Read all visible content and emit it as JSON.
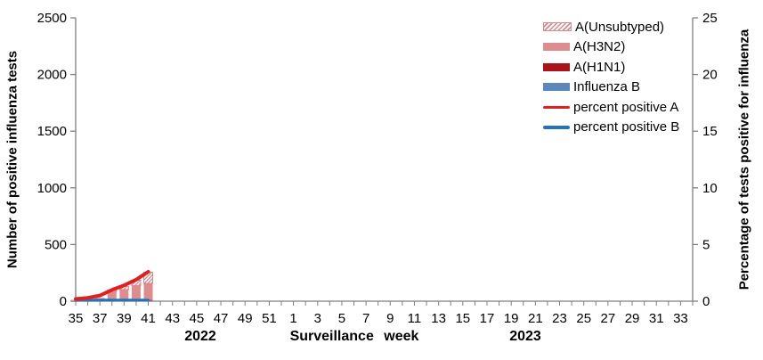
{
  "colors": {
    "a_unsubtyped_stripe": "#d8898b",
    "a_h3n2": "#de8d8f",
    "a_h1n1": "#a81418",
    "influenza_b": "#5b87bd",
    "percent_positive_a": "#e02020",
    "percent_positive_b": "#2274b8",
    "axis_line": "#7f7f7f",
    "text": "#000000"
  },
  "legend": {
    "items": [
      {
        "label": "A(Unsubtyped)",
        "swatch": "hatch"
      },
      {
        "label": "A(H3N2)",
        "swatch": "#de8d8f"
      },
      {
        "label": "A(H1N1)",
        "swatch": "#a81418"
      },
      {
        "label": "Influenza B",
        "swatch": "#5b87bd"
      },
      {
        "label": "percent positive A",
        "swatch": "line:#e02020"
      },
      {
        "label": "percent positive B",
        "swatch": "line:#2274b8"
      }
    ]
  },
  "x_axis": {
    "title": "Surveillance week",
    "year_left": "2022",
    "year_right": "2023"
  },
  "chart_data": {
    "type": "combo_stacked_bar_line",
    "title": "",
    "xlabel": "Surveillance week",
    "y_left": {
      "label": "Number of positive influenza tests",
      "ticks": [
        0,
        500,
        1000,
        1500,
        2000,
        2500
      ],
      "max": 2500
    },
    "y_right": {
      "label": "Percentage of tests positive for influenza",
      "ticks": [
        0,
        5,
        10,
        15,
        20,
        25
      ],
      "max": 25
    },
    "axis_weeks": [
      35,
      36,
      37,
      38,
      39,
      40,
      41,
      42,
      43,
      44,
      45,
      46,
      47,
      48,
      49,
      50,
      51,
      52,
      1,
      2,
      3,
      4,
      5,
      6,
      7,
      8,
      9,
      10,
      11,
      12,
      13,
      14,
      15,
      16,
      17,
      18,
      19,
      20,
      21,
      22,
      23,
      24,
      25,
      26,
      27,
      28,
      29,
      30,
      31,
      32,
      33,
      34
    ],
    "x_tick_labels": [
      35,
      37,
      39,
      41,
      43,
      45,
      47,
      49,
      51,
      1,
      3,
      5,
      7,
      9,
      11,
      13,
      15,
      17,
      19,
      21,
      23,
      25,
      27,
      29,
      31,
      33
    ],
    "data_weeks": [
      35,
      36,
      37,
      38,
      39,
      40,
      41
    ],
    "bar_series": [
      {
        "name": "Influenza B",
        "color": "#5b87bd",
        "pattern": "solid",
        "values": [
          1,
          1,
          2,
          3,
          3,
          4,
          5
        ]
      },
      {
        "name": "A(H1N1)",
        "color": "#a81418",
        "pattern": "solid",
        "values": [
          1,
          1,
          2,
          3,
          4,
          5,
          6
        ]
      },
      {
        "name": "A(H3N2)",
        "color": "#de8d8f",
        "pattern": "solid",
        "values": [
          4,
          9,
          14,
          76,
          95,
          128,
          146
        ]
      },
      {
        "name": "A(Unsubtyped)",
        "color": "#d8898b",
        "pattern": "hatch",
        "values": [
          2,
          4,
          6,
          18,
          28,
          48,
          98
        ]
      }
    ],
    "line_series": [
      {
        "name": "percent positive A",
        "color": "#e02020",
        "width": 4,
        "values": [
          0.2,
          0.3,
          0.5,
          1.0,
          1.4,
          1.9,
          2.6
        ]
      },
      {
        "name": "percent positive B",
        "color": "#2274b8",
        "width": 3,
        "values": [
          0.1,
          0.1,
          0.1,
          0.1,
          0.1,
          0.1,
          0.1
        ]
      }
    ],
    "legend_position": "top-right",
    "grid": false
  }
}
